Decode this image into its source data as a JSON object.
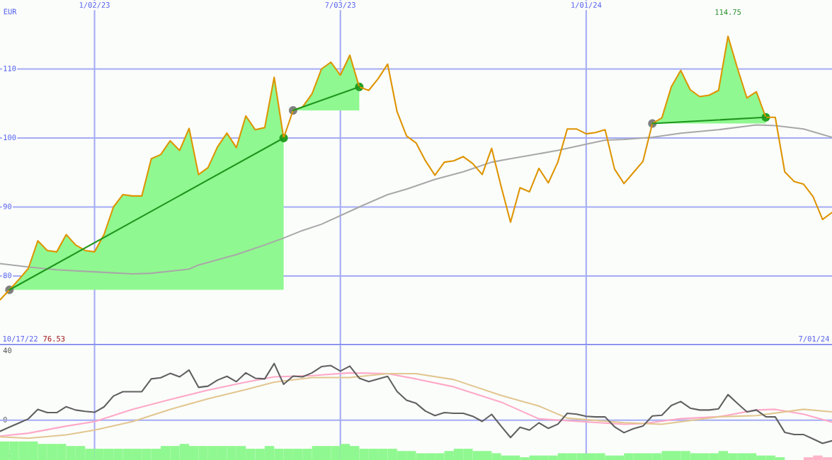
{
  "chart_data": [
    {
      "type": "line",
      "ylabel": "EUR",
      "x": [
        "2022-10-24",
        "2022-10-31",
        "2022-11-07",
        "2022-11-14",
        "2022-11-21",
        "2022-11-28",
        "2022-12-05",
        "2022-12-12",
        "2022-12-19",
        "2022-12-26",
        "2023-01-02",
        "2023-01-09",
        "2023-01-16",
        "2023-01-23",
        "2023-01-30",
        "2023-02-06",
        "2023-02-13",
        "2023-02-20",
        "2023-02-27",
        "2023-03-06",
        "2023-03-13",
        "2023-03-20",
        "2023-03-27",
        "2023-04-03",
        "2023-04-10",
        "2023-04-17",
        "2023-04-24",
        "2023-05-01",
        "2023-05-08",
        "2023-05-15",
        "2023-05-22",
        "2023-05-29",
        "2023-06-05",
        "2023-06-12",
        "2023-06-19",
        "2023-06-26",
        "2023-07-03",
        "2023-07-10",
        "2023-07-17",
        "2023-07-24",
        "2023-07-31",
        "2023-08-07",
        "2023-08-14",
        "2023-08-21",
        "2023-08-28",
        "2023-09-04",
        "2023-09-11",
        "2023-09-18",
        "2023-09-25",
        "2023-10-02",
        "2023-10-09",
        "2023-10-16",
        "2023-10-23",
        "2023-10-30",
        "2023-11-06",
        "2023-11-13",
        "2023-11-20",
        "2023-11-27",
        "2023-12-04",
        "2023-12-11",
        "2023-12-18",
        "2023-12-25",
        "2024-01-01",
        "2024-01-08",
        "2024-01-15",
        "2024-01-22",
        "2024-01-29",
        "2024-02-05",
        "2024-02-12",
        "2024-02-19",
        "2024-02-26",
        "2024-03-04",
        "2024-03-11",
        "2024-03-18",
        "2024-03-25",
        "2024-04-01",
        "2024-04-08",
        "2024-04-15",
        "2024-04-22",
        "2024-04-29",
        "2024-05-06",
        "2024-05-13",
        "2024-05-20",
        "2024-05-27",
        "2024-06-03",
        "2024-06-10",
        "2024-06-17",
        "2024-06-24",
        "2024-07-01"
      ],
      "xlim": [
        "2022-10-24",
        "2024-07-01"
      ],
      "xticks": [
        {
          "value": "2023-01-02",
          "label": "1/02/23"
        },
        {
          "value": "2023-07-03",
          "label": "7/03/23"
        },
        {
          "value": "2024-01-01",
          "label": "1/01/24"
        }
      ],
      "ylim": [
        70,
        120
      ],
      "yticks": [
        80,
        90,
        100,
        110
      ],
      "grid": true,
      "annotations": [
        "10/17/22",
        "76.53",
        "7/01/24",
        {
          "text": "114.75",
          "x": "2024-04-15",
          "y": 114.75
        }
      ],
      "series": [
        {
          "color": "#a8a8a8",
          "x": [
            "2022-10-24",
            "2022-11-14",
            "2022-12-05",
            "2023-01-02",
            "2023-01-30",
            "2023-02-13",
            "2023-03-13",
            "2023-03-20",
            "2023-04-17",
            "2023-05-08",
            "2023-05-22",
            "2023-06-05",
            "2023-06-19",
            "2023-07-17",
            "2023-08-07",
            "2023-08-21",
            "2023-09-11",
            "2023-10-02",
            "2023-10-23",
            "2023-11-06",
            "2023-12-11",
            "2024-01-01",
            "2024-01-15",
            "2024-01-29",
            "2024-02-19",
            "2024-03-11",
            "2024-04-08",
            "2024-05-06",
            "2024-05-20",
            "2024-06-10",
            "2024-07-01"
          ],
          "values": [
            81.8,
            81.3,
            80.9,
            80.6,
            80.3,
            80.4,
            81.0,
            81.6,
            83.1,
            84.5,
            85.5,
            86.6,
            87.5,
            90.0,
            91.8,
            92.6,
            94.0,
            95.1,
            96.5,
            97.0,
            98.2,
            99.1,
            99.7,
            99.8,
            100.1,
            100.7,
            101.2,
            101.9,
            101.8,
            101.3,
            100.1
          ]
        },
        {
          "color": "#de9400",
          "values": [
            76.53,
            78.0,
            79.5,
            81.1,
            85.1,
            83.7,
            83.5,
            86.0,
            84.5,
            83.7,
            83.5,
            86.0,
            90.0,
            91.8,
            91.6,
            91.6,
            97.0,
            97.6,
            99.6,
            98.2,
            101.4,
            94.7,
            95.7,
            98.7,
            100.7,
            98.6,
            103.2,
            101.2,
            101.5,
            108.8,
            100.0,
            104.0,
            104.5,
            106.4,
            110.0,
            111.0,
            109.1,
            112.0,
            107.4,
            106.9,
            108.6,
            110.7,
            103.8,
            100.3,
            99.3,
            96.7,
            94.6,
            96.5,
            96.7,
            97.3,
            96.3,
            94.7,
            98.5,
            93.0,
            87.8,
            92.8,
            92.2,
            95.6,
            93.5,
            96.5,
            101.3,
            101.3,
            100.6,
            100.8,
            101.2,
            95.5,
            93.4,
            95.0,
            96.6,
            102.1,
            102.9,
            107.4,
            109.8,
            107.0,
            106.0,
            106.2,
            106.9,
            114.75,
            110.1,
            105.8,
            106.7,
            103.0,
            103.0,
            95.1,
            93.7,
            93.3,
            91.5,
            88.2,
            89.2
          ],
          "lower": [
            null,
            78.0,
            78.0,
            78.0,
            78.0,
            78.0,
            78.0,
            78.0,
            78.0,
            78.0,
            78.0,
            78.0,
            78.0,
            78.0,
            78.0,
            78.0,
            78.0,
            78.0,
            78.0,
            78.0,
            78.0,
            78.0,
            78.0,
            78.0,
            78.0,
            78.0,
            78.0,
            78.0,
            78.0,
            78.0,
            78.0,
            104.0,
            104.0,
            104.0,
            104.0,
            104.0,
            104.0,
            104.0,
            104.0,
            null,
            null,
            null,
            null,
            null,
            null,
            null,
            null,
            null,
            null,
            null,
            null,
            null,
            null,
            null,
            null,
            null,
            null,
            null,
            null,
            null,
            null,
            null,
            null,
            null,
            null,
            null,
            null,
            null,
            null,
            102.1,
            102.1,
            102.1,
            102.1,
            102.1,
            102.1,
            102.1,
            102.1,
            102.1,
            102.1,
            102.1,
            102.1,
            102.1,
            null,
            null,
            null,
            null,
            null,
            null,
            null
          ],
          "upper": [
            null,
            78.0,
            79.5,
            81.1,
            85.1,
            83.7,
            83.5,
            86.0,
            84.5,
            83.7,
            83.5,
            86.0,
            90.0,
            91.8,
            91.6,
            91.6,
            97.0,
            97.6,
            99.6,
            98.2,
            101.4,
            94.7,
            95.7,
            98.7,
            100.7,
            98.6,
            103.2,
            101.2,
            101.5,
            108.8,
            100.0,
            104.0,
            104.5,
            106.4,
            110.0,
            111.0,
            109.1,
            112.0,
            107.4,
            null,
            null,
            null,
            null,
            null,
            null,
            null,
            null,
            null,
            null,
            null,
            null,
            null,
            null,
            null,
            null,
            null,
            null,
            null,
            null,
            null,
            null,
            null,
            null,
            null,
            null,
            null,
            null,
            null,
            null,
            102.1,
            102.9,
            107.4,
            109.8,
            107.0,
            106.0,
            106.2,
            106.9,
            114.75,
            110.1,
            105.8,
            106.7,
            103.0,
            null,
            null,
            null,
            null,
            null,
            null,
            null
          ]
        },
        {
          "color": "#1e961e",
          "x": [
            "2022-10-31",
            "2023-05-22"
          ],
          "values": [
            78.0,
            100.0
          ]
        },
        {
          "color": "#1e961e",
          "x": [
            "2023-05-29",
            "2023-07-17"
          ],
          "values": [
            104.0,
            107.4
          ]
        },
        {
          "color": "#1e961e",
          "x": [
            "2024-02-19",
            "2024-05-13"
          ],
          "values": [
            102.1,
            103.0
          ]
        },
        {
          "type": "scatter",
          "marker": "circle",
          "x": [
            "2022-10-31",
            "2023-05-22",
            "2023-05-29",
            "2023-07-17",
            "2024-02-19",
            "2024-05-13"
          ],
          "values": [
            78.0,
            100.0,
            104.0,
            107.4,
            102.1,
            103.0
          ],
          "colors": [
            "#808080",
            "#24a024",
            "#808080",
            "#24a024",
            "#808080",
            "#24a024"
          ]
        }
      ]
    },
    {
      "type": "line",
      "x": [
        "2022-10-24",
        "2022-10-31",
        "2022-11-07",
        "2022-11-14",
        "2022-11-21",
        "2022-11-28",
        "2022-12-05",
        "2022-12-12",
        "2022-12-19",
        "2022-12-26",
        "2023-01-02",
        "2023-01-09",
        "2023-01-16",
        "2023-01-23",
        "2023-01-30",
        "2023-02-06",
        "2023-02-13",
        "2023-02-20",
        "2023-02-27",
        "2023-03-06",
        "2023-03-13",
        "2023-03-20",
        "2023-03-27",
        "2023-04-03",
        "2023-04-10",
        "2023-04-17",
        "2023-04-24",
        "2023-05-01",
        "2023-05-08",
        "2023-05-15",
        "2023-05-22",
        "2023-05-29",
        "2023-06-05",
        "2023-06-12",
        "2023-06-19",
        "2023-06-26",
        "2023-07-03",
        "2023-07-10",
        "2023-07-17",
        "2023-07-24",
        "2023-07-31",
        "2023-08-07",
        "2023-08-14",
        "2023-08-21",
        "2023-08-28",
        "2023-09-04",
        "2023-09-11",
        "2023-09-18",
        "2023-09-25",
        "2023-10-02",
        "2023-10-09",
        "2023-10-16",
        "2023-10-23",
        "2023-10-30",
        "2023-11-06",
        "2023-11-13",
        "2023-11-20",
        "2023-11-27",
        "2023-12-04",
        "2023-12-11",
        "2023-12-18",
        "2023-12-25",
        "2024-01-01",
        "2024-01-08",
        "2024-01-15",
        "2024-01-22",
        "2024-01-29",
        "2024-02-05",
        "2024-02-12",
        "2024-02-19",
        "2024-02-26",
        "2024-03-04",
        "2024-03-11",
        "2024-03-18",
        "2024-03-25",
        "2024-04-01",
        "2024-04-08",
        "2024-04-15",
        "2024-04-22",
        "2024-04-29",
        "2024-05-06",
        "2024-05-13",
        "2024-05-20",
        "2024-05-27",
        "2024-06-03",
        "2024-06-10",
        "2024-06-17",
        "2024-06-24",
        "2024-07-01"
      ],
      "xlim": [
        "2022-10-24",
        "2024-07-01"
      ],
      "xticks": [
        {
          "value": "2023-01-02",
          "label": null
        },
        {
          "value": "2023-07-03",
          "label": null
        },
        {
          "value": "2024-01-01",
          "label": null
        }
      ],
      "ylim": [
        -23,
        43.5
      ],
      "yticks": [
        -20,
        0,
        40
      ],
      "grid": "x",
      "tick_labels": "y",
      "ref_lines": [
        {
          "axis": "y",
          "value": 0,
          "color": "#a4acf4"
        }
      ],
      "series": [
        {
          "type": "bar",
          "x": [
            "2022-10-27T12:00",
            "2022-11-03T12:00",
            "2022-11-10T12:00",
            "2022-11-17T12:00",
            "2022-11-24T12:00",
            "2022-12-01T12:00",
            "2022-12-08T12:00",
            "2022-12-15T12:00",
            "2022-12-22T12:00",
            "2022-12-29T12:00",
            "2023-01-05T12:00",
            "2023-01-12T12:00",
            "2023-01-19T12:00",
            "2023-01-26T12:00",
            "2023-02-02T12:00",
            "2023-02-09T12:00",
            "2023-02-16T12:00",
            "2023-02-23T12:00",
            "2023-03-02T12:00",
            "2023-03-09T12:00",
            "2023-03-16T12:00",
            "2023-03-23T12:00",
            "2023-03-30T12:00",
            "2023-04-06T12:00",
            "2023-04-13T12:00",
            "2023-04-20T12:00",
            "2023-04-27T12:00",
            "2023-05-04T12:00",
            "2023-05-11T12:00",
            "2023-05-18T12:00",
            "2023-05-25T12:00",
            "2023-06-01T12:00",
            "2023-06-08T12:00",
            "2023-06-15T12:00",
            "2023-06-22T12:00",
            "2023-06-29T12:00",
            "2023-07-06T12:00",
            "2023-07-13T12:00",
            "2023-07-20T12:00",
            "2023-07-27T12:00",
            "2023-08-03T12:00",
            "2023-08-10T12:00",
            "2023-08-17T12:00",
            "2023-08-24T12:00",
            "2023-08-31T12:00",
            "2023-09-07T12:00",
            "2023-09-14T12:00",
            "2023-09-21T12:00",
            "2023-09-28T12:00",
            "2023-10-05T12:00",
            "2023-10-12T12:00",
            "2023-10-19T12:00",
            "2023-10-26T12:00",
            "2023-11-02T12:00",
            "2023-11-09T12:00",
            "2023-11-16T12:00",
            "2023-11-23T12:00",
            "2023-11-30T12:00",
            "2023-12-07T12:00",
            "2023-12-14T12:00",
            "2023-12-21T12:00",
            "2023-12-28T12:00",
            "2024-01-04T12:00",
            "2024-01-11T12:00",
            "2024-01-18T12:00",
            "2024-01-25T12:00",
            "2024-02-01T12:00",
            "2024-02-08T12:00",
            "2024-02-15T12:00",
            "2024-02-22T12:00",
            "2024-02-29T12:00",
            "2024-03-07T12:00",
            "2024-03-14T12:00",
            "2024-03-21T12:00",
            "2024-03-28T12:00",
            "2024-04-04T12:00",
            "2024-04-11T12:00",
            "2024-04-18T12:00",
            "2024-04-25T12:00",
            "2024-05-02T12:00",
            "2024-05-09T12:00",
            "2024-05-16T12:00",
            "2024-05-23T12:00",
            "2024-05-30T12:00",
            "2024-06-06T12:00",
            "2024-06-13T12:00",
            "2024-06-20T12:00",
            "2024-06-27T12:00"
          ],
          "values": [
            10.7,
            10.7,
            10.7,
            10.7,
            9.3,
            9.3,
            9.3,
            8.1,
            8.1,
            6.5,
            6.5,
            6.5,
            6.5,
            6.5,
            6.5,
            6.5,
            6.5,
            8.1,
            8.1,
            9.3,
            8.1,
            8.1,
            8.1,
            8.1,
            8.1,
            8.1,
            6.5,
            6.5,
            8.1,
            6.5,
            6.5,
            6.5,
            6.5,
            8.1,
            8.1,
            8.1,
            9.3,
            8.1,
            6.5,
            6.5,
            6.5,
            6.5,
            5.2,
            5.2,
            3.9,
            3.9,
            3.9,
            5.2,
            6.5,
            6.5,
            5.2,
            5.2,
            3.9,
            2.6,
            2.6,
            1.6,
            2.6,
            2.6,
            2.6,
            3.9,
            3.9,
            3.9,
            3.9,
            3.9,
            2.6,
            2.6,
            3.9,
            3.9,
            3.9,
            3.9,
            5.2,
            5.2,
            5.2,
            3.9,
            3.9,
            3.9,
            5.2,
            3.9,
            3.9,
            3.9,
            2.6,
            2.6,
            1.6,
            null,
            null,
            1.6,
            2.6,
            1.6
          ],
          "base": [
            -23,
            -23,
            -23,
            -23,
            -23,
            -23,
            -23,
            -23,
            -23,
            -23,
            -23,
            -23,
            -23,
            -23,
            -23,
            -23,
            -23,
            -23,
            -23,
            -23,
            -23,
            -23,
            -23,
            -23,
            -23,
            -23,
            -23,
            -23,
            -23,
            -23,
            -23,
            -23,
            -23,
            -23,
            -23,
            -23,
            -23,
            -23,
            -23,
            -23,
            -23,
            -23,
            -23,
            -23,
            -23,
            -23,
            -23,
            -23,
            -23,
            -23,
            -23,
            -23,
            -23,
            -23,
            -23,
            -23,
            -23,
            -23,
            -23,
            -23,
            -23,
            -23,
            -23,
            -23,
            -23,
            -23,
            -23,
            -23,
            -23,
            -23,
            -23,
            -23,
            -23,
            -23,
            -23,
            -23,
            -23,
            -23,
            -23,
            -23,
            -23,
            -23,
            -23,
            null,
            null,
            -23,
            -23,
            -23
          ],
          "colors": [
            "#90f890",
            "#90f890",
            "#90f890",
            "#90f890",
            "#90f890",
            "#90f890",
            "#90f890",
            "#90f890",
            "#90f890",
            "#90f890",
            "#90f890",
            "#90f890",
            "#90f890",
            "#90f890",
            "#90f890",
            "#90f890",
            "#90f890",
            "#90f890",
            "#90f890",
            "#90f890",
            "#90f890",
            "#90f890",
            "#90f890",
            "#90f890",
            "#90f890",
            "#90f890",
            "#90f890",
            "#90f890",
            "#90f890",
            "#90f890",
            "#90f890",
            "#90f890",
            "#90f890",
            "#90f890",
            "#90f890",
            "#90f890",
            "#90f890",
            "#90f890",
            "#90f890",
            "#90f890",
            "#90f890",
            "#90f890",
            "#90f890",
            "#90f890",
            "#90f890",
            "#90f890",
            "#90f890",
            "#90f890",
            "#90f890",
            "#90f890",
            "#90f890",
            "#90f890",
            "#90f890",
            "#90f890",
            "#90f890",
            "#90f890",
            "#90f890",
            "#90f890",
            "#90f890",
            "#90f890",
            "#90f890",
            "#90f890",
            "#90f890",
            "#90f890",
            "#90f890",
            "#90f890",
            "#90f890",
            "#90f890",
            "#90f890",
            "#90f890",
            "#90f890",
            "#90f890",
            "#90f890",
            "#90f890",
            "#90f890",
            "#90f890",
            "#90f890",
            "#90f890",
            "#90f890",
            "#90f890",
            "#90f890",
            "#90f890",
            "#90f890",
            "#90f890",
            "#90f890",
            "#ffb4c8",
            "#ffb4c8",
            "#ffb4c8"
          ]
        },
        {
          "color": "#ffa8c8",
          "x": [
            "2022-10-24",
            "2022-11-14",
            "2022-12-12",
            "2023-01-02",
            "2023-01-30",
            "2023-02-27",
            "2023-03-27",
            "2023-04-24",
            "2023-05-15",
            "2023-06-12",
            "2023-07-10",
            "2023-08-07",
            "2023-08-28",
            "2023-09-25",
            "2023-10-30",
            "2023-11-27",
            "2023-12-18",
            "2024-01-29",
            "2024-02-12",
            "2024-03-11",
            "2024-04-08",
            "2024-05-06",
            "2024-05-20",
            "2024-06-10",
            "2024-07-01"
          ],
          "values": [
            -9.2,
            -7.5,
            -3.4,
            -0.8,
            6.3,
            12.0,
            17.4,
            22.0,
            25.1,
            25.8,
            27.4,
            26.9,
            23.9,
            19.3,
            10.5,
            0.8,
            -0.3,
            -2.3,
            -1.9,
            0.9,
            2.0,
            5.9,
            6.3,
            3.5,
            -1.1
          ]
        },
        {
          "color": "#e2c690",
          "x": [
            "2022-10-24",
            "2022-11-14",
            "2022-12-12",
            "2023-01-02",
            "2023-01-30",
            "2023-02-27",
            "2023-03-27",
            "2023-04-24",
            "2023-05-15",
            "2023-06-12",
            "2023-07-10",
            "2023-08-07",
            "2023-08-28",
            "2023-09-25",
            "2023-10-30",
            "2023-11-27",
            "2023-12-18",
            "2024-01-29",
            "2024-02-26",
            "2024-04-08",
            "2024-05-06",
            "2024-06-10",
            "2024-07-01"
          ],
          "values": [
            -9.6,
            -10.4,
            -8.5,
            -5.7,
            -0.8,
            6.3,
            12.4,
            17.7,
            22.0,
            24.7,
            24.7,
            26.9,
            26.9,
            23.5,
            14.3,
            8.2,
            1.2,
            -1.4,
            -2.3,
            2.0,
            2.7,
            6.3,
            4.8
          ]
        },
        {
          "color": "#606060",
          "values": [
            -6.4,
            -4.0,
            -1.6,
            0.8,
            6.3,
            4.4,
            4.4,
            7.8,
            5.9,
            5.1,
            4.6,
            7.7,
            14.0,
            16.5,
            16.5,
            16.5,
            23.9,
            24.6,
            27.1,
            25.1,
            29.0,
            19.0,
            19.7,
            23.2,
            25.4,
            22.3,
            27.4,
            24.3,
            23.9,
            32.8,
            20.8,
            25.5,
            25.1,
            27.4,
            31.0,
            31.6,
            28.4,
            31.3,
            24.3,
            22.3,
            23.9,
            25.4,
            16.6,
            11.6,
            9.8,
            5.3,
            2.7,
            4.4,
            4.0,
            4.0,
            2.3,
            -0.7,
            3.4,
            -3.4,
            -10.0,
            -4.1,
            -5.7,
            -1.5,
            -4.7,
            -2.3,
            4.0,
            3.5,
            2.3,
            1.9,
            1.9,
            -3.8,
            -7.2,
            -4.9,
            -3.4,
            2.5,
            2.9,
            8.5,
            10.8,
            7.0,
            5.9,
            5.9,
            6.6,
            14.8,
            9.7,
            4.8,
            5.9,
            2.0,
            1.9,
            -7.0,
            -8.3,
            -8.3,
            -10.8,
            -13.4,
            -11.9
          ]
        }
      ]
    }
  ]
}
